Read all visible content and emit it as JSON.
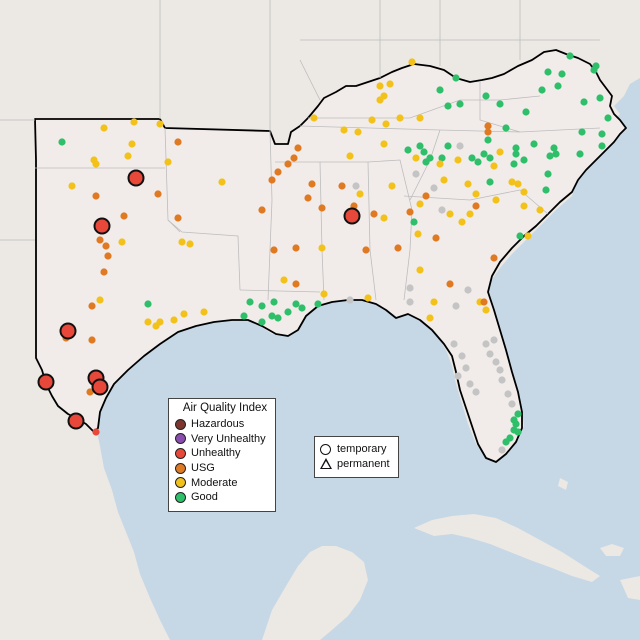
{
  "legend_aqi": {
    "title": "Air Quality Index",
    "items": [
      {
        "label": "Hazardous",
        "color": "#7e3530"
      },
      {
        "label": "Very Unhealthy",
        "color": "#8b4cb0"
      },
      {
        "label": "Unhealthy",
        "color": "#e8483a"
      },
      {
        "label": "USG",
        "color": "#e07a22"
      },
      {
        "label": "Moderate",
        "color": "#f2c21a"
      },
      {
        "label": "Good",
        "color": "#2fbf6a"
      }
    ]
  },
  "legend_type": {
    "items": [
      {
        "label": "temporary",
        "shape": "circle"
      },
      {
        "label": "permanent",
        "shape": "triangle"
      }
    ]
  },
  "colors": {
    "water": "#c6d7e6",
    "land": "#ece8e4",
    "region_land": "#f1ecea",
    "region_border": "#000000",
    "state_border": "#bdbdbd",
    "unavailable": "#c4c4c4"
  }
}
